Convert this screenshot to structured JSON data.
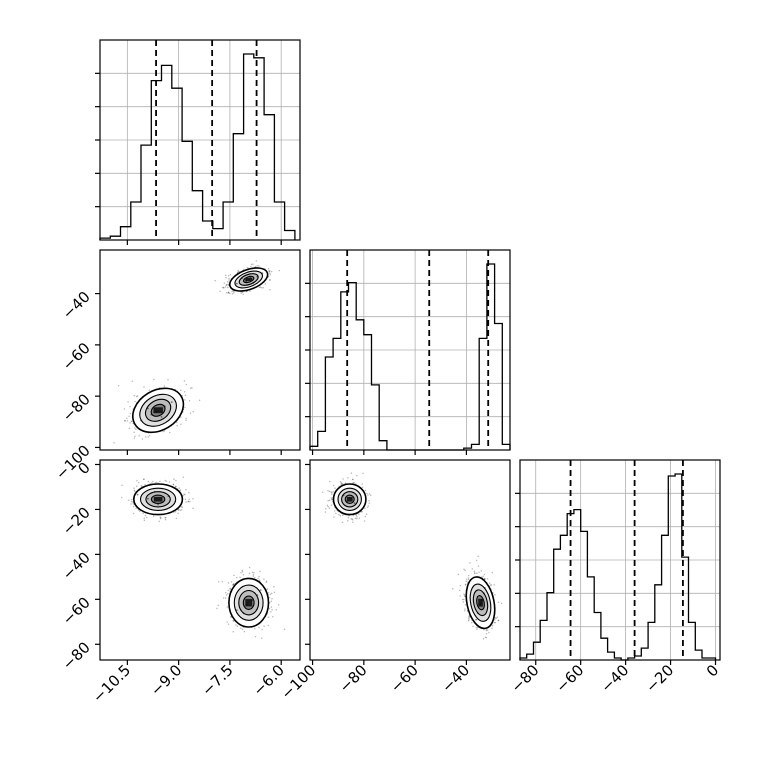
{
  "chart_data": {
    "type": "corner",
    "parameters": 3,
    "tick_labels": {
      "p0": [
        "−10.5",
        "−9.0",
        "−7.5",
        "−6.0"
      ],
      "p1": [
        "−100",
        "−80",
        "−60",
        "−40"
      ],
      "p2": [
        "−80",
        "−60",
        "−40",
        "−20",
        "0"
      ]
    },
    "axes": {
      "p0": {
        "range": [
          -11.3,
          -5.45
        ],
        "ticks": [
          -10.5,
          -9.0,
          -7.5,
          -6.0
        ]
      },
      "p1": {
        "range": [
          -101,
          -23
        ],
        "ticks": [
          -100,
          -80,
          -60,
          -40
        ]
      },
      "p2": {
        "range": [
          -87,
          2
        ],
        "ticks": [
          -80,
          -60,
          -40,
          -20,
          0
        ]
      }
    },
    "quantile_lines": {
      "p0": [
        -9.66,
        -8.02,
        -6.72
      ],
      "p1": [
        -86.5,
        -54.5,
        -31.5
      ],
      "p2": [
        -64.5,
        -36.0,
        -14.5
      ]
    },
    "marginals": {
      "p0": {
        "edges": [
          -11.3,
          -11.0,
          -10.7,
          -10.4,
          -10.1,
          -9.8,
          -9.5,
          -9.2,
          -8.9,
          -8.6,
          -8.3,
          -8.0,
          -7.7,
          -7.4,
          -7.1,
          -6.8,
          -6.5,
          -6.2,
          -5.9,
          -5.6
        ],
        "counts": [
          0.01,
          0.02,
          0.07,
          0.2,
          0.5,
          0.84,
          0.92,
          0.8,
          0.52,
          0.26,
          0.1,
          0.06,
          0.2,
          0.56,
          0.98,
          0.96,
          0.66,
          0.2,
          0.05
        ]
      },
      "p1": {
        "edges": [
          -101,
          -98,
          -95,
          -92,
          -89,
          -86,
          -83,
          -80,
          -77,
          -74,
          -71,
          -68,
          -65,
          -62,
          -59,
          -56,
          -53,
          -50,
          -47,
          -44,
          -41,
          -38,
          -35,
          -32,
          -29,
          -26,
          -23
        ],
        "counts": [
          0.02,
          0.1,
          0.5,
          0.6,
          0.85,
          0.9,
          0.7,
          0.62,
          0.35,
          0.05,
          0,
          0,
          0,
          0,
          0,
          0,
          0,
          0,
          0,
          0,
          0.01,
          0.03,
          0.6,
          1.0,
          0.68,
          0.03
        ]
      },
      "p2": {
        "edges": [
          -87,
          -84,
          -81,
          -78,
          -75,
          -72,
          -69,
          -66,
          -63,
          -60,
          -57,
          -54,
          -51,
          -48,
          -45,
          -42,
          -39,
          -36,
          -33,
          -30,
          -27,
          -24,
          -21,
          -18,
          -15,
          -12,
          -9,
          -6,
          -3,
          0
        ],
        "counts": [
          0.01,
          0.03,
          0.09,
          0.2,
          0.34,
          0.56,
          0.63,
          0.74,
          0.76,
          0.65,
          0.42,
          0.24,
          0.11,
          0.04,
          0.01,
          0,
          0.01,
          0.02,
          0.06,
          0.19,
          0.38,
          0.63,
          0.93,
          0.94,
          0.52,
          0.19,
          0.05,
          0.01,
          0.01
        ]
      }
    },
    "clusters": [
      {
        "p0": -9.6,
        "p1": -85.5,
        "p2": -15.5,
        "weight": 0.5
      },
      {
        "p0": -6.95,
        "p1": -34.5,
        "p2": -61.5,
        "weight": 0.5
      }
    ],
    "samples": {
      "p0_p1": [
        [
          -6.9,
          -33.8
        ],
        [
          -7.02,
          -35.2
        ],
        [
          -6.7,
          -33.4
        ],
        [
          -7.3,
          -36.1
        ],
        [
          -6.55,
          -32.1
        ],
        [
          -7.15,
          -34.0
        ],
        [
          -6.82,
          -35.8
        ],
        [
          -9.8,
          -87.2
        ],
        [
          -9.4,
          -84.0
        ],
        [
          -9.65,
          -86.1
        ],
        [
          -10.1,
          -89.5
        ],
        [
          -9.2,
          -82.3
        ],
        [
          -9.9,
          -84.8
        ],
        [
          -9.5,
          -88.1
        ]
      ],
      "p0_p2": [
        [
          -9.9,
          -15.2
        ],
        [
          -9.3,
          -14.1
        ],
        [
          -9.6,
          -17.8
        ],
        [
          -10.2,
          -13.4
        ],
        [
          -9.1,
          -16.5
        ],
        [
          -9.7,
          -12.2
        ],
        [
          -7.0,
          -62.3
        ],
        [
          -6.7,
          -58.1
        ],
        [
          -7.3,
          -64.8
        ],
        [
          -6.6,
          -55.9
        ],
        [
          -7.1,
          -66.2
        ],
        [
          -6.85,
          -60.4
        ]
      ],
      "p1_p2": [
        [
          -85.2,
          -15.1
        ],
        [
          -87.9,
          -13.8
        ],
        [
          -83.6,
          -17.2
        ],
        [
          -86.8,
          -16.4
        ],
        [
          -84.1,
          -12.5
        ],
        [
          -34.5,
          -62.0
        ],
        [
          -33.1,
          -57.4
        ],
        [
          -35.6,
          -66.1
        ],
        [
          -32.8,
          -54.9
        ],
        [
          -36.2,
          -69.0
        ],
        [
          -34.0,
          -60.3
        ]
      ]
    }
  }
}
